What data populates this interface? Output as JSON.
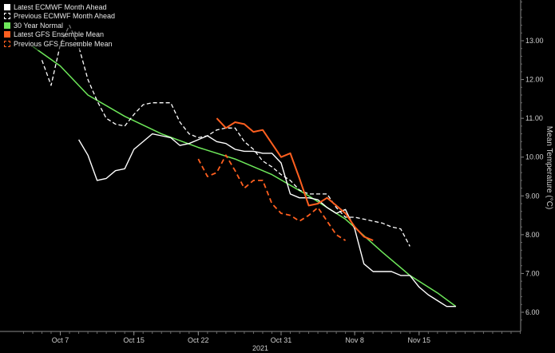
{
  "chart_data": {
    "type": "line",
    "title": "",
    "xlabel": "2021",
    "ylabel": "Mean Temperature (°C)",
    "y_axis_side": "right",
    "grid": false,
    "legend": "top-left",
    "x_day_range": [
      279,
      329
    ],
    "ylim": [
      5.7,
      14.2
    ],
    "x_ticks": [
      {
        "label": "Oct 7",
        "day": 280
      },
      {
        "label": "Oct 15",
        "day": 288
      },
      {
        "label": "Oct 22",
        "day": 295
      },
      {
        "label": "Oct 31",
        "day": 304
      },
      {
        "label": "Nov 8",
        "day": 312
      },
      {
        "label": "Nov 15",
        "day": 319
      }
    ],
    "y_ticks": [
      6.0,
      7.0,
      8.0,
      9.0,
      10.0,
      11.0,
      12.0,
      13.0
    ],
    "series": [
      {
        "name": "Latest ECMWF Month Ahead",
        "color": "#ffffff",
        "dash": "solid",
        "width": 1.4,
        "points": [
          {
            "date": "Oct 9",
            "day": 282,
            "y": 10.45
          },
          {
            "date": "Oct 10",
            "day": 283,
            "y": 10.05
          },
          {
            "date": "Oct 11",
            "day": 284,
            "y": 9.4
          },
          {
            "date": "Oct 12",
            "day": 285,
            "y": 9.45
          },
          {
            "date": "Oct 13",
            "day": 286,
            "y": 9.65
          },
          {
            "date": "Oct 14",
            "day": 287,
            "y": 9.7
          },
          {
            "date": "Oct 15",
            "day": 288,
            "y": 10.2
          },
          {
            "date": "Oct 17",
            "day": 290,
            "y": 10.6
          },
          {
            "date": "Oct 18",
            "day": 291,
            "y": 10.55
          },
          {
            "date": "Oct 19",
            "day": 292,
            "y": 10.5
          },
          {
            "date": "Oct 20",
            "day": 293,
            "y": 10.3
          },
          {
            "date": "Oct 21",
            "day": 294,
            "y": 10.35
          },
          {
            "date": "Oct 22",
            "day": 295,
            "y": 10.45
          },
          {
            "date": "Oct 23",
            "day": 296,
            "y": 10.55
          },
          {
            "date": "Oct 24",
            "day": 297,
            "y": 10.4
          },
          {
            "date": "Oct 25",
            "day": 298,
            "y": 10.35
          },
          {
            "date": "Oct 26",
            "day": 299,
            "y": 10.2
          },
          {
            "date": "Oct 27",
            "day": 300,
            "y": 10.15
          },
          {
            "date": "Oct 28",
            "day": 301,
            "y": 10.15
          },
          {
            "date": "Oct 29",
            "day": 302,
            "y": 10.1
          },
          {
            "date": "Oct 30",
            "day": 303,
            "y": 10.1
          },
          {
            "date": "Oct 31",
            "day": 304,
            "y": 9.85
          },
          {
            "date": "Nov 1",
            "day": 305,
            "y": 9.05
          },
          {
            "date": "Nov 2",
            "day": 306,
            "y": 8.95
          },
          {
            "date": "Nov 3",
            "day": 307,
            "y": 8.95
          },
          {
            "date": "Nov 4",
            "day": 308,
            "y": 8.9
          },
          {
            "date": "Nov 5",
            "day": 309,
            "y": 8.7
          },
          {
            "date": "Nov 6",
            "day": 310,
            "y": 8.55
          },
          {
            "date": "Nov 7",
            "day": 311,
            "y": 8.65
          },
          {
            "date": "Nov 8",
            "day": 312,
            "y": 8.15
          },
          {
            "date": "Nov 9",
            "day": 313,
            "y": 7.25
          },
          {
            "date": "Nov 10",
            "day": 314,
            "y": 7.05
          },
          {
            "date": "Nov 11",
            "day": 315,
            "y": 7.05
          },
          {
            "date": "Nov 12",
            "day": 316,
            "y": 7.05
          },
          {
            "date": "Nov 13",
            "day": 317,
            "y": 6.95
          },
          {
            "date": "Nov 14",
            "day": 318,
            "y": 6.95
          },
          {
            "date": "Nov 15",
            "day": 319,
            "y": 6.65
          },
          {
            "date": "Nov 16",
            "day": 320,
            "y": 6.45
          },
          {
            "date": "Nov 17",
            "day": 321,
            "y": 6.3
          },
          {
            "date": "Nov 18",
            "day": 322,
            "y": 6.15
          },
          {
            "date": "Nov 19",
            "day": 323,
            "y": 6.15
          }
        ]
      },
      {
        "name": "Previous ECMWF Month Ahead",
        "color": "#ffffff",
        "dash": "5,3",
        "width": 1.3,
        "points": [
          {
            "date": "Oct 5",
            "day": 278,
            "y": 12.5
          },
          {
            "date": "Oct 6",
            "day": 279,
            "y": 11.85
          },
          {
            "date": "Oct 7",
            "day": 280,
            "y": 12.9
          },
          {
            "date": "Oct 8",
            "day": 281,
            "y": 13.4
          },
          {
            "date": "Oct 9",
            "day": 282,
            "y": 12.85
          },
          {
            "date": "Oct 10",
            "day": 283,
            "y": 12.0
          },
          {
            "date": "Oct 11",
            "day": 284,
            "y": 11.45
          },
          {
            "date": "Oct 12",
            "day": 285,
            "y": 11.0
          },
          {
            "date": "Oct 13",
            "day": 286,
            "y": 10.85
          },
          {
            "date": "Oct 14",
            "day": 287,
            "y": 10.8
          },
          {
            "date": "Oct 15",
            "day": 288,
            "y": 11.1
          },
          {
            "date": "Oct 16",
            "day": 289,
            "y": 11.35
          },
          {
            "date": "Oct 17",
            "day": 290,
            "y": 11.4
          },
          {
            "date": "Oct 18",
            "day": 291,
            "y": 11.4
          },
          {
            "date": "Oct 19",
            "day": 292,
            "y": 11.4
          },
          {
            "date": "Oct 20",
            "day": 293,
            "y": 10.9
          },
          {
            "date": "Oct 21",
            "day": 294,
            "y": 10.6
          },
          {
            "date": "Oct 22",
            "day": 295,
            "y": 10.5
          },
          {
            "date": "Oct 23",
            "day": 296,
            "y": 10.55
          },
          {
            "date": "Oct 24",
            "day": 297,
            "y": 10.7
          },
          {
            "date": "Oct 25",
            "day": 298,
            "y": 10.75
          },
          {
            "date": "Oct 26",
            "day": 299,
            "y": 10.75
          },
          {
            "date": "Oct 27",
            "day": 300,
            "y": 10.4
          },
          {
            "date": "Oct 28",
            "day": 301,
            "y": 10.2
          },
          {
            "date": "Oct 29",
            "day": 302,
            "y": 9.9
          },
          {
            "date": "Oct 30",
            "day": 303,
            "y": 9.75
          },
          {
            "date": "Oct 31",
            "day": 304,
            "y": 9.55
          },
          {
            "date": "Nov 1",
            "day": 305,
            "y": 9.4
          },
          {
            "date": "Nov 2",
            "day": 306,
            "y": 9.15
          },
          {
            "date": "Nov 3",
            "day": 307,
            "y": 9.05
          },
          {
            "date": "Nov 4",
            "day": 308,
            "y": 9.05
          },
          {
            "date": "Nov 5",
            "day": 309,
            "y": 9.05
          },
          {
            "date": "Nov 6",
            "day": 310,
            "y": 8.7
          },
          {
            "date": "Nov 7",
            "day": 311,
            "y": 8.45
          },
          {
            "date": "Nov 8",
            "day": 312,
            "y": 8.45
          },
          {
            "date": "Nov 9",
            "day": 313,
            "y": 8.4
          },
          {
            "date": "Nov 10",
            "day": 314,
            "y": 8.35
          },
          {
            "date": "Nov 11",
            "day": 315,
            "y": 8.3
          },
          {
            "date": "Nov 12",
            "day": 316,
            "y": 8.2
          },
          {
            "date": "Nov 13",
            "day": 317,
            "y": 8.15
          },
          {
            "date": "Nov 14",
            "day": 318,
            "y": 7.7
          }
        ]
      },
      {
        "name": "30 Year Normal",
        "color": "#6ee85a",
        "dash": "solid",
        "width": 1.5,
        "points": [
          {
            "date": "Oct 4",
            "day": 277,
            "y": 12.85
          },
          {
            "date": "Oct 7",
            "day": 280,
            "y": 12.35
          },
          {
            "date": "Oct 10",
            "day": 283,
            "y": 11.6
          },
          {
            "date": "Oct 14",
            "day": 287,
            "y": 11.05
          },
          {
            "date": "Oct 18",
            "day": 291,
            "y": 10.6
          },
          {
            "date": "Oct 22",
            "day": 295,
            "y": 10.25
          },
          {
            "date": "Oct 26",
            "day": 299,
            "y": 9.95
          },
          {
            "date": "Oct 30",
            "day": 303,
            "y": 9.55
          },
          {
            "date": "Nov 3",
            "day": 307,
            "y": 9.0
          },
          {
            "date": "Nov 7",
            "day": 311,
            "y": 8.4
          },
          {
            "date": "Nov 11",
            "day": 315,
            "y": 7.55
          },
          {
            "date": "Nov 14",
            "day": 318,
            "y": 6.95
          },
          {
            "date": "Nov 17",
            "day": 321,
            "y": 6.5
          },
          {
            "date": "Nov 19",
            "day": 323,
            "y": 6.15
          }
        ]
      },
      {
        "name": "Latest GFS Ensemble Mean",
        "color": "#ff5f1f",
        "dash": "solid",
        "width": 2.0,
        "points": [
          {
            "date": "Oct 24",
            "day": 297,
            "y": 11.0
          },
          {
            "date": "Oct 25",
            "day": 298,
            "y": 10.75
          },
          {
            "date": "Oct 26",
            "day": 299,
            "y": 10.9
          },
          {
            "date": "Oct 27",
            "day": 300,
            "y": 10.85
          },
          {
            "date": "Oct 28",
            "day": 301,
            "y": 10.65
          },
          {
            "date": "Oct 29",
            "day": 302,
            "y": 10.7
          },
          {
            "date": "Oct 30",
            "day": 303,
            "y": 10.35
          },
          {
            "date": "Oct 31",
            "day": 304,
            "y": 10.0
          },
          {
            "date": "Nov 1",
            "day": 305,
            "y": 10.1
          },
          {
            "date": "Nov 2",
            "day": 306,
            "y": 9.45
          },
          {
            "date": "Nov 3",
            "day": 307,
            "y": 8.75
          },
          {
            "date": "Nov 4",
            "day": 308,
            "y": 8.8
          },
          {
            "date": "Nov 5",
            "day": 309,
            "y": 8.95
          },
          {
            "date": "Nov 6",
            "day": 310,
            "y": 8.75
          },
          {
            "date": "Nov 7",
            "day": 311,
            "y": 8.55
          },
          {
            "date": "Nov 8",
            "day": 312,
            "y": 8.2
          },
          {
            "date": "Nov 9",
            "day": 313,
            "y": 7.95
          },
          {
            "date": "Nov 10",
            "day": 314,
            "y": 7.85
          }
        ]
      },
      {
        "name": "Previous GFS Ensemble Mean",
        "color": "#ff5f1f",
        "dash": "6,4",
        "width": 1.8,
        "points": [
          {
            "date": "Oct 22",
            "day": 295,
            "y": 9.95
          },
          {
            "date": "Oct 23",
            "day": 296,
            "y": 9.5
          },
          {
            "date": "Oct 24",
            "day": 297,
            "y": 9.6
          },
          {
            "date": "Oct 25",
            "day": 298,
            "y": 10.05
          },
          {
            "date": "Oct 26",
            "day": 299,
            "y": 9.65
          },
          {
            "date": "Oct 27",
            "day": 300,
            "y": 9.2
          },
          {
            "date": "Oct 28",
            "day": 301,
            "y": 9.4
          },
          {
            "date": "Oct 29",
            "day": 302,
            "y": 9.4
          },
          {
            "date": "Oct 30",
            "day": 303,
            "y": 8.8
          },
          {
            "date": "Oct 31",
            "day": 304,
            "y": 8.55
          },
          {
            "date": "Nov 1",
            "day": 305,
            "y": 8.5
          },
          {
            "date": "Nov 2",
            "day": 306,
            "y": 8.35
          },
          {
            "date": "Nov 3",
            "day": 307,
            "y": 8.5
          },
          {
            "date": "Nov 4",
            "day": 308,
            "y": 8.7
          },
          {
            "date": "Nov 5",
            "day": 309,
            "y": 8.35
          },
          {
            "date": "Nov 6",
            "day": 310,
            "y": 8.0
          },
          {
            "date": "Nov 7",
            "day": 311,
            "y": 7.85
          }
        ]
      }
    ]
  }
}
